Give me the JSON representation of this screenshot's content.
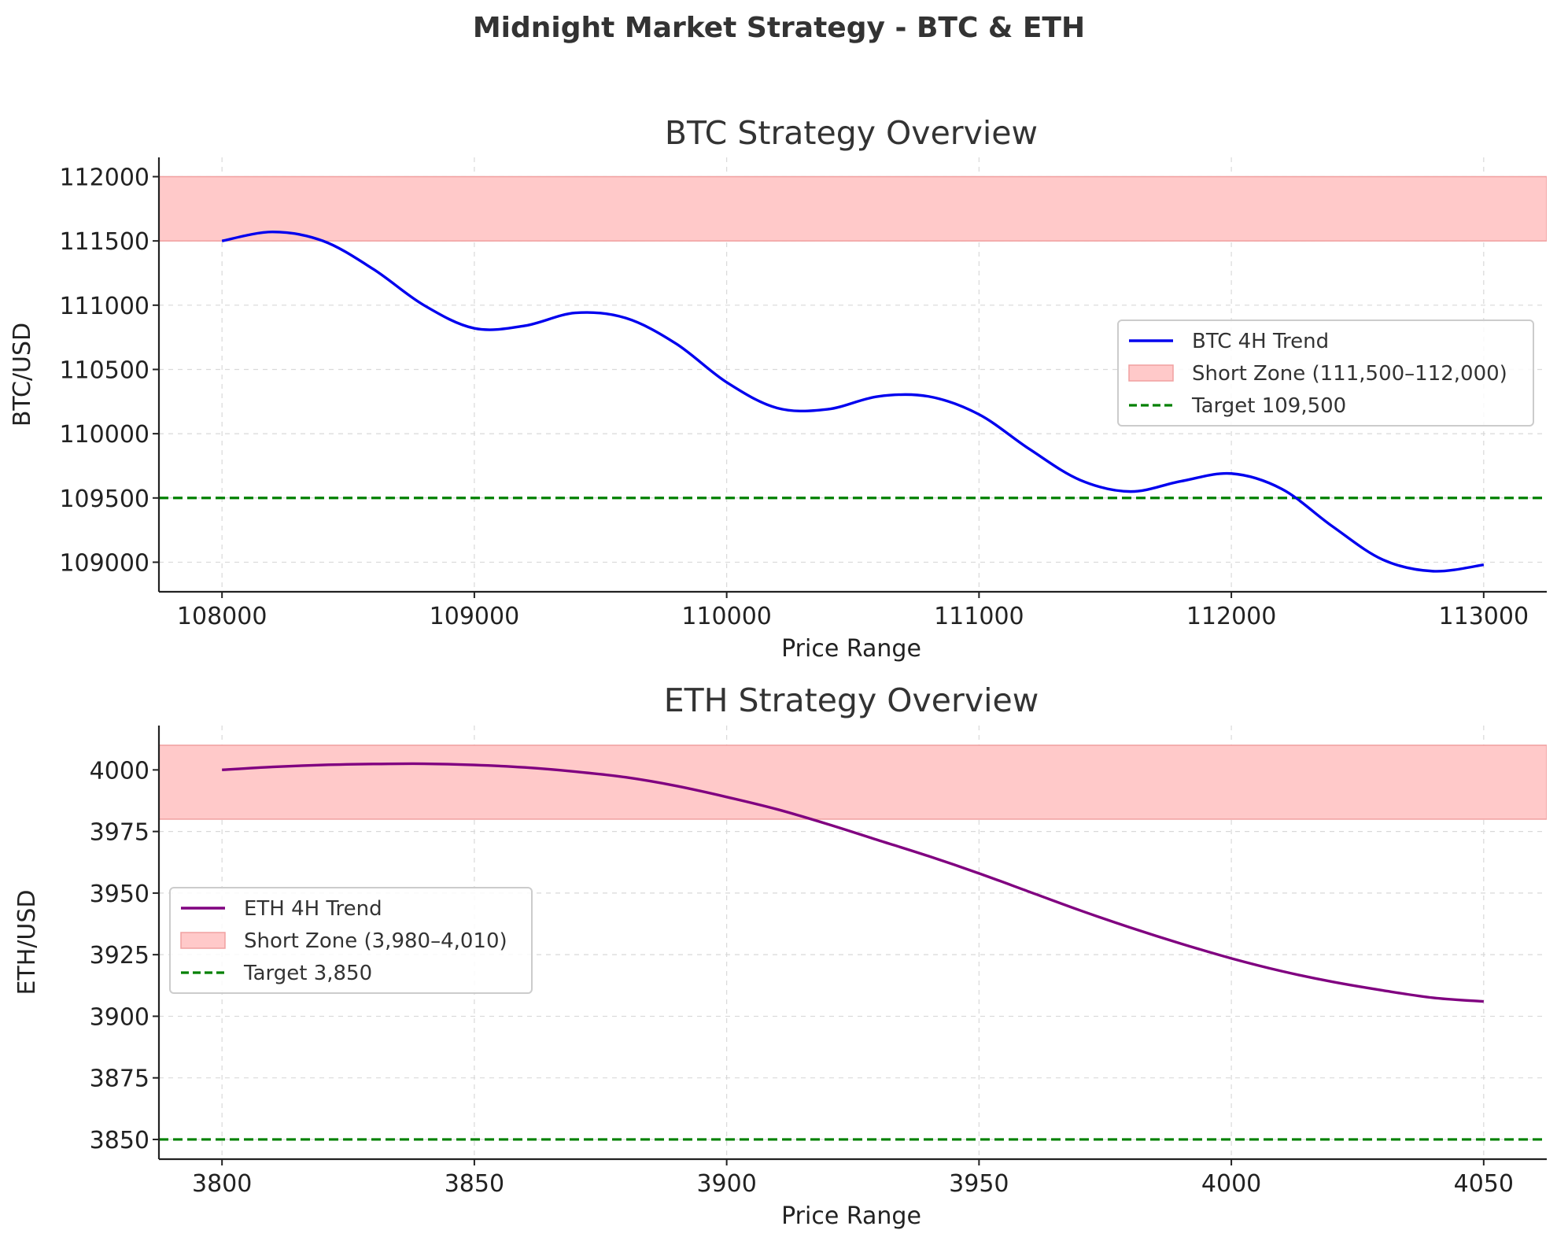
{
  "figure": {
    "title": "Midnight Market Strategy - BTC & ETH"
  },
  "chart_data": [
    {
      "type": "line",
      "title": "BTC Strategy Overview",
      "xlabel": "Price Range",
      "ylabel": "BTC/USD",
      "xlim": [
        107750,
        113250
      ],
      "ylim": [
        108770,
        112150
      ],
      "xticks": [
        108000,
        109000,
        110000,
        111000,
        112000,
        113000
      ],
      "yticks": [
        109000,
        109500,
        110000,
        110500,
        111000,
        111500,
        112000
      ],
      "legend_position": "center-right",
      "series": [
        {
          "name": "BTC 4H Trend",
          "color": "#0000ee",
          "x": [
            108000,
            108200,
            108400,
            108600,
            108800,
            109000,
            109200,
            109400,
            109600,
            109800,
            110000,
            110200,
            110400,
            110600,
            110800,
            111000,
            111200,
            111400,
            111600,
            111800,
            112000,
            112200,
            112400,
            112600,
            112800,
            113000
          ],
          "y": [
            111500,
            111570,
            111500,
            111280,
            111000,
            110820,
            110840,
            110940,
            110900,
            110700,
            110400,
            110200,
            110190,
            110290,
            110290,
            110150,
            109880,
            109640,
            109550,
            109630,
            109690,
            109570,
            109280,
            109020,
            108930,
            108980
          ]
        }
      ],
      "band": {
        "name": "Short Zone (111,500–112,000)",
        "y0": 111500,
        "y1": 112000,
        "color": "#ffc9c9"
      },
      "hline": {
        "name": "Target 109,500",
        "y": 109500,
        "color": "#008000"
      }
    },
    {
      "type": "line",
      "title": "ETH Strategy Overview",
      "xlabel": "Price Range",
      "ylabel": "ETH/USD",
      "xlim": [
        3787.5,
        4062.5
      ],
      "ylim": [
        3842,
        4018
      ],
      "xticks": [
        3800,
        3850,
        3900,
        3950,
        4000,
        4050
      ],
      "yticks": [
        3850,
        3875,
        3900,
        3925,
        3950,
        3975,
        4000
      ],
      "legend_position": "center-left",
      "series": [
        {
          "name": "ETH 4H Trend",
          "color": "#800080",
          "x": [
            3800,
            3810,
            3820,
            3830,
            3840,
            3850,
            3860,
            3870,
            3880,
            3890,
            3900,
            3910,
            3920,
            3930,
            3940,
            3950,
            3960,
            3970,
            3980,
            3990,
            4000,
            4010,
            4020,
            4030,
            4040,
            4050
          ],
          "y": [
            4000,
            4001.2,
            4002,
            4002.4,
            4002.5,
            4002,
            4001,
            3999.3,
            3997,
            3993.5,
            3989,
            3984,
            3978,
            3971.5,
            3965,
            3958,
            3950.5,
            3943,
            3936,
            3929.5,
            3923.5,
            3918.3,
            3914,
            3910.5,
            3907.5,
            3906
          ]
        }
      ],
      "band": {
        "name": "Short Zone (3,980–4,010)",
        "y0": 3980,
        "y1": 4010,
        "color": "#ffc9c9"
      },
      "hline": {
        "name": "Target 3,850",
        "y": 3850,
        "color": "#008000"
      }
    }
  ]
}
